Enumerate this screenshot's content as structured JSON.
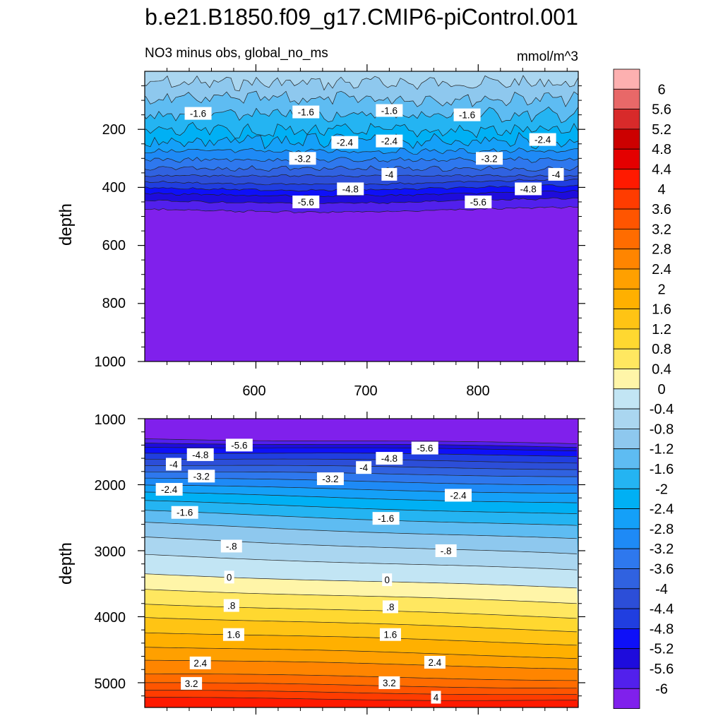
{
  "title": "b.e21.B1850.f09_g17.CMIP6-piControl.001",
  "subtitle_left": "NO3 minus obs, global_no_ms",
  "subtitle_right": "mmol/m^3",
  "chart_data": [
    {
      "type": "heatmap",
      "panel": "upper",
      "xlabel": "",
      "ylabel": "depth",
      "xlim": [
        500,
        890
      ],
      "ylim": [
        1000,
        0
      ],
      "x_ticks": [
        "600",
        "700",
        "800"
      ],
      "y_ticks": [
        "200",
        "400",
        "600",
        "800",
        "1000"
      ],
      "contour_depths": [
        {
          "level": -0.8,
          "depth": 40
        },
        {
          "level": -1.2,
          "depth": 95
        },
        {
          "level": -1.6,
          "depth": 150
        },
        {
          "level": -2.0,
          "depth": 205
        },
        {
          "level": -2.4,
          "depth": 240
        },
        {
          "level": -2.8,
          "depth": 275
        },
        {
          "level": -3.2,
          "depth": 305
        },
        {
          "level": -3.6,
          "depth": 335
        },
        {
          "level": -4.0,
          "depth": 360
        },
        {
          "level": -4.4,
          "depth": 380
        },
        {
          "level": -4.8,
          "depth": 400
        },
        {
          "level": -5.2,
          "depth": 420
        },
        {
          "level": -5.6,
          "depth": 445
        },
        {
          "level": -6.0,
          "depth": 475
        }
      ],
      "contour_labels": [
        {
          "text": "-1.6",
          "x": 548,
          "depth": 145
        },
        {
          "text": "-1.6",
          "x": 645,
          "depth": 140
        },
        {
          "text": "-1.6",
          "x": 720,
          "depth": 135
        },
        {
          "text": "-1.6",
          "x": 790,
          "depth": 150
        },
        {
          "text": "-2.4",
          "x": 680,
          "depth": 245
        },
        {
          "text": "-2.4",
          "x": 720,
          "depth": 240
        },
        {
          "text": "-2.4",
          "x": 858,
          "depth": 235
        },
        {
          "text": "-3.2",
          "x": 642,
          "depth": 300
        },
        {
          "text": "-3.2",
          "x": 810,
          "depth": 300
        },
        {
          "text": "-4",
          "x": 720,
          "depth": 355
        },
        {
          "text": "-4",
          "x": 870,
          "depth": 355
        },
        {
          "text": "-4.8",
          "x": 685,
          "depth": 405
        },
        {
          "text": "-4.8",
          "x": 845,
          "depth": 405
        },
        {
          "text": "-5.6",
          "x": 645,
          "depth": 450
        },
        {
          "text": "-5.6",
          "x": 800,
          "depth": 450
        }
      ]
    },
    {
      "type": "heatmap",
      "panel": "lower",
      "xlabel": "",
      "ylabel": "depth",
      "xlim": [
        500,
        890
      ],
      "ylim": [
        5375,
        1000
      ],
      "y_ticks": [
        "1000",
        "2000",
        "3000",
        "4000",
        "5000"
      ],
      "contour_lines": [
        {
          "level": -6.0,
          "d_left": 1300,
          "d_right": 1380
        },
        {
          "level": -5.6,
          "d_left": 1360,
          "d_right": 1430
        },
        {
          "level": -5.2,
          "d_left": 1420,
          "d_right": 1480
        },
        {
          "level": -4.8,
          "d_left": 1510,
          "d_right": 1560
        },
        {
          "level": -4.4,
          "d_left": 1600,
          "d_right": 1660
        },
        {
          "level": -4.0,
          "d_left": 1700,
          "d_right": 1760
        },
        {
          "level": -3.6,
          "d_left": 1800,
          "d_right": 1870
        },
        {
          "level": -3.2,
          "d_left": 1900,
          "d_right": 2000
        },
        {
          "level": -2.8,
          "d_left": 2010,
          "d_right": 2130
        },
        {
          "level": -2.4,
          "d_left": 2120,
          "d_right": 2280
        },
        {
          "level": -2.0,
          "d_left": 2250,
          "d_right": 2450
        },
        {
          "level": -1.6,
          "d_left": 2400,
          "d_right": 2630
        },
        {
          "level": -1.2,
          "d_left": 2580,
          "d_right": 2830
        },
        {
          "level": -0.8,
          "d_left": 2800,
          "d_right": 3060
        },
        {
          "level": -0.4,
          "d_left": 3060,
          "d_right": 3300
        },
        {
          "level": 0.0,
          "d_left": 3350,
          "d_right": 3570
        },
        {
          "level": 0.4,
          "d_left": 3580,
          "d_right": 3800
        },
        {
          "level": 0.8,
          "d_left": 3800,
          "d_right": 4020
        },
        {
          "level": 1.2,
          "d_left": 4000,
          "d_right": 4220
        },
        {
          "level": 1.6,
          "d_left": 4230,
          "d_right": 4420
        },
        {
          "level": 2.0,
          "d_left": 4450,
          "d_right": 4620
        },
        {
          "level": 2.4,
          "d_left": 4650,
          "d_right": 4780
        },
        {
          "level": 2.8,
          "d_left": 4860,
          "d_right": 4960
        },
        {
          "level": 3.2,
          "d_left": 5000,
          "d_right": 5080
        },
        {
          "level": 3.6,
          "d_left": 5120,
          "d_right": 5180
        },
        {
          "level": 4.0,
          "d_left": 5230,
          "d_right": 5270
        }
      ],
      "contour_labels": [
        {
          "text": "-5.6",
          "x": 585,
          "depth": 1400
        },
        {
          "text": "-5.6",
          "x": 752,
          "depth": 1445
        },
        {
          "text": "-4.8",
          "x": 550,
          "depth": 1545
        },
        {
          "text": "-4.8",
          "x": 720,
          "depth": 1600
        },
        {
          "text": "-4",
          "x": 526,
          "depth": 1690
        },
        {
          "text": "-4",
          "x": 697,
          "depth": 1740
        },
        {
          "text": "-3.2",
          "x": 551,
          "depth": 1870
        },
        {
          "text": "-3.2",
          "x": 667,
          "depth": 1910
        },
        {
          "text": "-2.4",
          "x": 522,
          "depth": 2070
        },
        {
          "text": "-2.4",
          "x": 782,
          "depth": 2160
        },
        {
          "text": "-1.6",
          "x": 536,
          "depth": 2420
        },
        {
          "text": "-1.6",
          "x": 717,
          "depth": 2510
        },
        {
          "text": "-.8",
          "x": 578,
          "depth": 2930
        },
        {
          "text": "-.8",
          "x": 771,
          "depth": 3000
        },
        {
          "text": "0",
          "x": 576,
          "depth": 3400
        },
        {
          "text": "0",
          "x": 718,
          "depth": 3440
        },
        {
          "text": ".8",
          "x": 578,
          "depth": 3830
        },
        {
          "text": ".8",
          "x": 721,
          "depth": 3850
        },
        {
          "text": "1.6",
          "x": 580,
          "depth": 4270
        },
        {
          "text": "1.6",
          "x": 721,
          "depth": 4270
        },
        {
          "text": "2.4",
          "x": 550,
          "depth": 4700
        },
        {
          "text": "2.4",
          "x": 761,
          "depth": 4690
        },
        {
          "text": "3.2",
          "x": 542,
          "depth": 5010
        },
        {
          "text": "3.2",
          "x": 720,
          "depth": 5000
        },
        {
          "text": "4",
          "x": 762,
          "depth": 5220
        }
      ]
    }
  ],
  "colorbar": {
    "labels": [
      "6",
      "5.6",
      "5.2",
      "4.8",
      "4.4",
      "4",
      "3.6",
      "3.2",
      "2.8",
      "2.4",
      "2",
      "1.6",
      "1.2",
      "0.8",
      "0.4",
      "0",
      "-0.4",
      "-0.8",
      "-1.2",
      "-1.6",
      "-2",
      "-2.4",
      "-2.8",
      "-3.2",
      "-3.6",
      "-4",
      "-4.4",
      "-4.8",
      "-5.2",
      "-5.6",
      "-6"
    ],
    "colors": [
      "#fdb0b0",
      "#e86868",
      "#d82a2a",
      "#cc0000",
      "#e40000",
      "#ff1a00",
      "#ff3c00",
      "#ff5500",
      "#ff6c00",
      "#ff8500",
      "#ffa000",
      "#ffb000",
      "#ffc414",
      "#ffd830",
      "#ffe760",
      "#fff5a8",
      "#c2e5f4",
      "#aad6f0",
      "#8ec8ee",
      "#5ebcf2",
      "#24b4f2",
      "#00b0f4",
      "#14a0f8",
      "#1e8af6",
      "#2e78ee",
      "#3062e0",
      "#2c4ed8",
      "#203ee0",
      "#0e10f8",
      "#1e0cdc",
      "#5220ec",
      "#8020ec"
    ]
  }
}
